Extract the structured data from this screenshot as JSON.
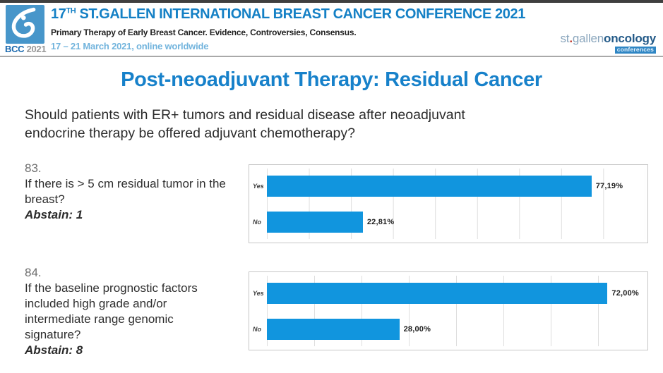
{
  "colors": {
    "bar-blue": "#1195de",
    "title-blue": "#1781ca",
    "header-blue": "#1480c5",
    "date-blue": "#72b4dd",
    "logo-blue": "#4796ca",
    "brand-gray-blue": "#8aa6bd",
    "brand-dark-blue": "#235a88",
    "brand-dot-red": "#c0392b",
    "conferences-bg": "#2f86c4"
  },
  "header": {
    "logo_bcc": "BCC",
    "logo_year": " 2021",
    "title_num": "17",
    "title_sup": "TH",
    "title_rest": " ST.GALLEN INTERNATIONAL BREAST CANCER CONFERENCE 2021",
    "subtitle": "Primary Therapy of Early Breast Cancer. Evidence, Controversies, Consensus.",
    "dates": "17 – 21 March 2021, online worldwide",
    "brand_st": "st",
    "brand_dot": ".",
    "brand_gallen": "gallen",
    "brand_oncology": "oncology",
    "brand_conferences": "conferences"
  },
  "slide": {
    "title": "Post-neoadjuvant Therapy: Residual Cancer",
    "question_line1": "Should patients with ER+ tumors and residual disease after neoadjuvant",
    "question_line2": "endocrine therapy be offered adjuvant chemotherapy?"
  },
  "polls": [
    {
      "number": "83.",
      "question": "If there is > 5 cm residual tumor in the breast?",
      "abstain": "Abstain: 1"
    },
    {
      "number": "84.",
      "question": "If the baseline prognostic factors included high grade and/or intermediate range genomic signature?",
      "abstain": "Abstain: 8"
    }
  ],
  "chart_data": [
    {
      "type": "bar",
      "orientation": "horizontal",
      "title": "83. If there is > 5 cm residual tumor in the breast? (Abstain: 1)",
      "categories": [
        "Yes",
        "No"
      ],
      "values": [
        77.19,
        22.81
      ],
      "value_labels": [
        "77,19%",
        "22,81%"
      ],
      "xlim": [
        0,
        90
      ],
      "grid": true,
      "legend": "none"
    },
    {
      "type": "bar",
      "orientation": "horizontal",
      "title": "84. If the baseline prognostic factors included high grade and/or intermediate range genomic signature? (Abstain: 8)",
      "categories": [
        "Yes",
        "No"
      ],
      "values": [
        72.0,
        28.0
      ],
      "value_labels": [
        "72,00%",
        "28,00%"
      ],
      "xlim": [
        0,
        80
      ],
      "grid": true,
      "legend": "none"
    }
  ]
}
